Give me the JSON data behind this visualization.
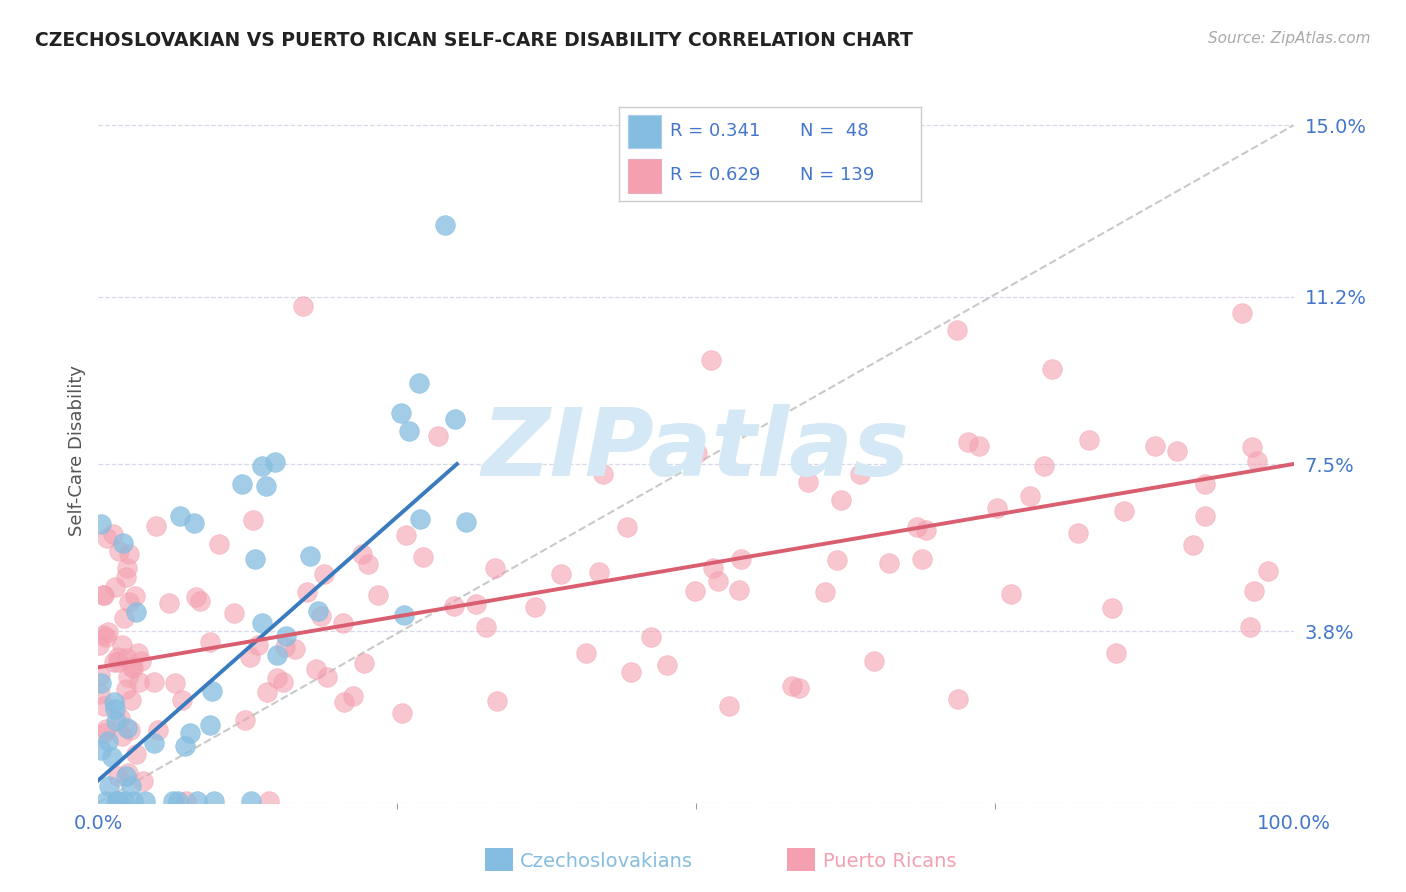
{
  "title": "CZECHOSLOVAKIAN VS PUERTO RICAN SELF-CARE DISABILITY CORRELATION CHART",
  "source": "Source: ZipAtlas.com",
  "ylabel": "Self-Care Disability",
  "xlim": [
    0,
    100
  ],
  "ylim": [
    0,
    15.6
  ],
  "yticks": [
    0,
    3.8,
    7.5,
    11.2,
    15.0
  ],
  "ytick_labels": [
    "",
    "3.8%",
    "7.5%",
    "11.2%",
    "15.0%"
  ],
  "xtick_labels": [
    "0.0%",
    "100.0%"
  ],
  "R_czech": 0.341,
  "N_czech": 48,
  "R_puerto": 0.629,
  "N_puerto": 139,
  "color_czech": "#85bde0",
  "color_puerto": "#f4a0b0",
  "color_czech_line": "#3a7bbf",
  "color_puerto_line": "#d95f70",
  "color_ref_line": "#c0c0c0",
  "background_color": "#ffffff",
  "grid_color": "#d8d8e8",
  "title_color": "#222222",
  "axis_label_color": "#4477cc",
  "watermark_color": "#d5e8f5",
  "czech_reg_x0": 0,
  "czech_reg_y0": 0.5,
  "czech_reg_x1": 30,
  "czech_reg_y1": 7.5,
  "puerto_reg_x0": 0,
  "puerto_reg_y0": 3.0,
  "puerto_reg_x1": 100,
  "puerto_reg_y1": 7.5
}
